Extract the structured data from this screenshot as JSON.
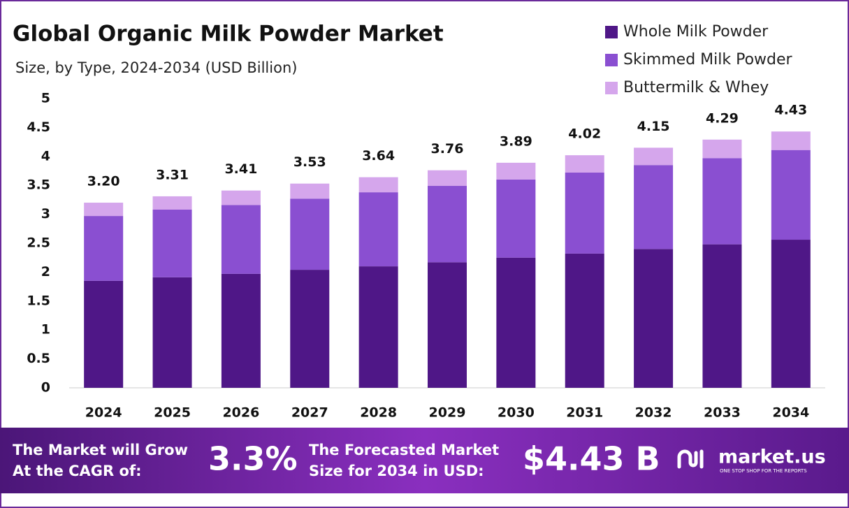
{
  "chart_data": {
    "type": "stacked-bar",
    "title": "Global Organic Milk Powder Market",
    "subtitle": "Size, by Type, 2024-2034 (USD Billion)",
    "categories": [
      "2024",
      "2025",
      "2026",
      "2027",
      "2028",
      "2029",
      "2030",
      "2031",
      "2032",
      "2033",
      "2034"
    ],
    "series": [
      {
        "name": "Whole Milk Powder",
        "color": "#4f1787",
        "values": [
          1.85,
          1.91,
          1.97,
          2.04,
          2.1,
          2.17,
          2.25,
          2.32,
          2.4,
          2.48,
          2.56
        ]
      },
      {
        "name": "Skimmed Milk Powder",
        "color": "#8a4fd1",
        "values": [
          1.12,
          1.17,
          1.19,
          1.23,
          1.28,
          1.32,
          1.35,
          1.4,
          1.45,
          1.49,
          1.55
        ]
      },
      {
        "name": "Buttermilk & Whey",
        "color": "#d5a6ec",
        "values": [
          0.23,
          0.23,
          0.25,
          0.26,
          0.26,
          0.27,
          0.29,
          0.3,
          0.3,
          0.32,
          0.32
        ]
      }
    ],
    "totals": [
      3.2,
      3.31,
      3.41,
      3.53,
      3.64,
      3.76,
      3.89,
      4.02,
      4.15,
      4.29,
      4.43
    ],
    "total_labels": [
      "3.20",
      "3.31",
      "3.41",
      "3.53",
      "3.64",
      "3.76",
      "3.89",
      "4.02",
      "4.15",
      "4.29",
      "4.43"
    ],
    "ylim": [
      0,
      5
    ],
    "yticks": [
      0,
      0.5,
      1,
      1.5,
      2,
      2.5,
      3,
      3.5,
      4,
      4.5,
      5
    ],
    "legend": "top-right"
  },
  "footer": {
    "cagr_text": [
      "The Market will Grow",
      "At the CAGR of:"
    ],
    "cagr_value": "3.3%",
    "forecast_text": [
      "The Forecasted Market",
      "Size for 2034 in USD:"
    ],
    "forecast_value": "$4.43 B",
    "brand": "market.us",
    "tagline": "ONE STOP SHOP FOR THE REPORTS"
  }
}
